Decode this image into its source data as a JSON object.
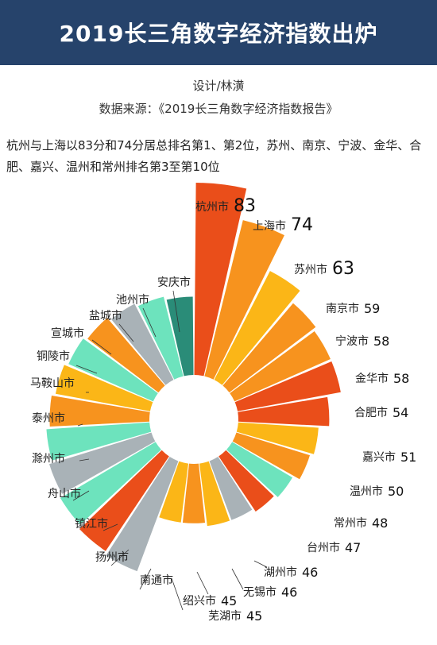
{
  "header": {
    "title": "2019长三角数字经济指数出炉"
  },
  "designer": "设计/林潢",
  "source": "数据来源：《2019长三角数字经济指数报告》",
  "summary": "杭州与上海以83分和74分居总排名第1、第2位，苏州、南京、宁波、金华、合肥、嘉兴、温州和常州排名第3至第10位",
  "colors": {
    "header_bg": "#26436b",
    "red": "#ea4e1a",
    "orange": "#f7931e",
    "yellow": "#fbb617",
    "mint": "#6de3bd",
    "gray": "#a9b2b7",
    "teal": "#2a8c78",
    "navy": "#1f4a5c"
  },
  "chart_data": {
    "type": "polar-bar",
    "title": "",
    "categories": [
      "杭州市",
      "上海市",
      "苏州市",
      "南京市",
      "宁波市",
      "金华市",
      "合肥市",
      "嘉兴市",
      "温州市",
      "常州市",
      "台州市",
      "湖州市",
      "无锡市",
      "芜湖市",
      "绍兴市",
      "南通市",
      "扬州市",
      "镇江市",
      "舟山市",
      "滁州市",
      "泰州市",
      "马鞍山市",
      "铜陵市",
      "宣城市",
      "盐城市",
      "池州市",
      "安庆市"
    ],
    "values": [
      83,
      74,
      63,
      59,
      58,
      58,
      54,
      51,
      50,
      48,
      47,
      46,
      46,
      45,
      45,
      null,
      null,
      null,
      null,
      null,
      null,
      null,
      null,
      null,
      null,
      null,
      null
    ]
  }
}
